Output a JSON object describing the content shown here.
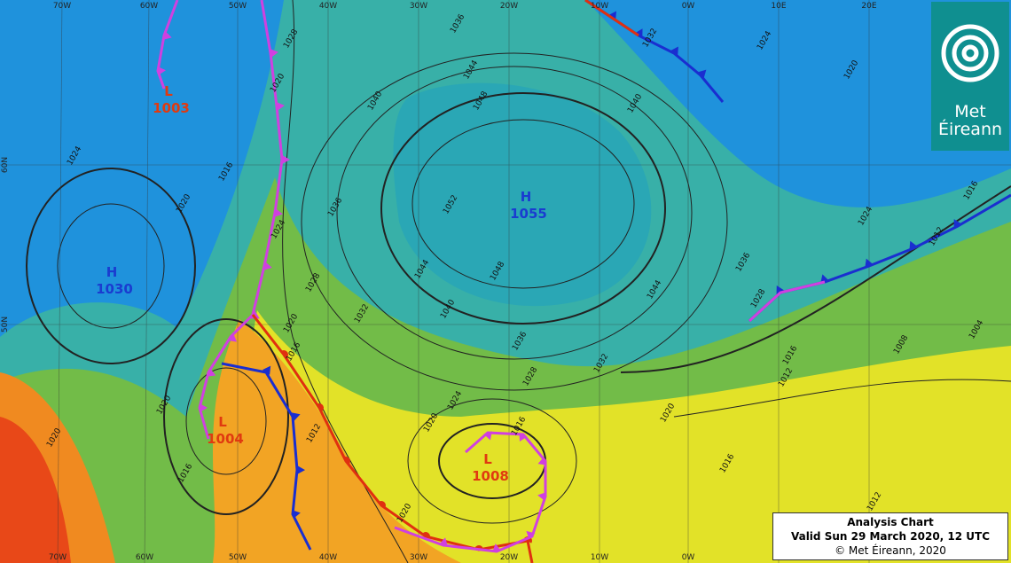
{
  "logo": {
    "line1": "Met",
    "line2": "Éireann"
  },
  "caption": {
    "title": "Analysis Chart",
    "valid": "Valid Sun 29 March 2020, 12 UTC",
    "copyright": "© Met Éireann, 2020"
  },
  "pressure_centers": [
    {
      "type": "H",
      "value": "1055"
    },
    {
      "type": "H",
      "value": "1030"
    },
    {
      "type": "L",
      "value": "1003"
    },
    {
      "type": "L",
      "value": "1004"
    },
    {
      "type": "L",
      "value": "1008"
    }
  ],
  "isobar_labels": [
    "1036",
    "1044",
    "1048",
    "1040",
    "1052",
    "1044",
    "1048",
    "1040",
    "1036",
    "1032",
    "1028",
    "1024",
    "1020",
    "1016",
    "1020",
    "1016",
    "1012",
    "1016",
    "1012",
    "1016",
    "1020",
    "1028",
    "1032",
    "1036",
    "1024",
    "1020",
    "1024",
    "1016",
    "1020",
    "1016",
    "1020",
    "1040",
    "1032",
    "1024",
    "1020",
    "1044",
    "1036",
    "1028",
    "1024",
    "1016",
    "1012",
    "1008",
    "1004",
    "1012",
    "1028",
    "1020",
    "1020"
  ],
  "longitude_labels_top": [
    "70W",
    "60W",
    "50W",
    "40W",
    "30W",
    "20W",
    "10W",
    "0W",
    "10E",
    "20E"
  ],
  "longitude_labels_bottom": [
    "70W",
    "60W",
    "50W",
    "40W",
    "30W",
    "20W",
    "10W",
    "0W"
  ],
  "latitude_labels": [
    "60N",
    "50N"
  ]
}
